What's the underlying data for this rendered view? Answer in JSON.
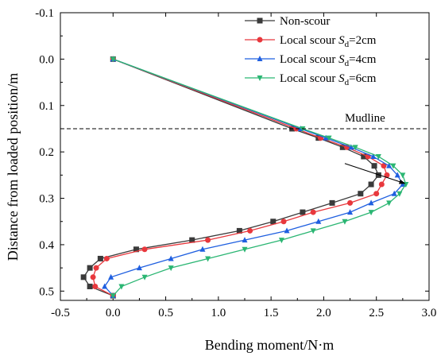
{
  "chart_data": {
    "type": "line",
    "xlabel": "Bending moment/N·m",
    "ylabel": "Distance from loaded position/m",
    "xlim": [
      -0.5,
      3.0
    ],
    "ylim": [
      -0.1,
      0.52
    ],
    "y_inverted": true,
    "grid": false,
    "legend_position": "top-right",
    "x_ticks": [
      "-0.5",
      "0.0",
      "0.5",
      "1.0",
      "1.5",
      "2.0",
      "2.5",
      "3.0"
    ],
    "y_ticks": [
      "-0.1",
      "0.0",
      "0.1",
      "0.2",
      "0.3",
      "0.4",
      "0.5"
    ],
    "annotations": [
      {
        "text": "Mudline",
        "type": "horizontal-dashed-line",
        "y": 0.15
      }
    ],
    "series": [
      {
        "name": "Non-scour",
        "legend_prefix": "Non-scour",
        "legend_subscript": "",
        "legend_suffix": "",
        "color": "#3a3a3a",
        "marker": "square",
        "points": [
          [
            0.0,
            0.0
          ],
          [
            1.7,
            0.15
          ],
          [
            1.95,
            0.17
          ],
          [
            2.18,
            0.19
          ],
          [
            2.38,
            0.21
          ],
          [
            2.48,
            0.23
          ],
          [
            2.52,
            0.25
          ],
          [
            2.45,
            0.27
          ],
          [
            2.35,
            0.29
          ],
          [
            2.08,
            0.31
          ],
          [
            1.8,
            0.33
          ],
          [
            1.52,
            0.35
          ],
          [
            1.2,
            0.37
          ],
          [
            0.75,
            0.39
          ],
          [
            0.22,
            0.41
          ],
          [
            -0.12,
            0.43
          ],
          [
            -0.22,
            0.45
          ],
          [
            -0.28,
            0.47
          ],
          [
            -0.22,
            0.49
          ],
          [
            0.0,
            0.51
          ]
        ]
      },
      {
        "name": "Local scour Sd=2cm",
        "legend_prefix": "Local scour ",
        "legend_subscript": "d",
        "legend_suffix": "=2cm",
        "color": "#e8383d",
        "marker": "circle",
        "points": [
          [
            0.0,
            0.0
          ],
          [
            1.74,
            0.15
          ],
          [
            1.97,
            0.17
          ],
          [
            2.22,
            0.19
          ],
          [
            2.42,
            0.21
          ],
          [
            2.57,
            0.23
          ],
          [
            2.6,
            0.25
          ],
          [
            2.55,
            0.27
          ],
          [
            2.5,
            0.29
          ],
          [
            2.25,
            0.31
          ],
          [
            1.9,
            0.33
          ],
          [
            1.62,
            0.35
          ],
          [
            1.3,
            0.37
          ],
          [
            0.9,
            0.39
          ],
          [
            0.3,
            0.41
          ],
          [
            -0.06,
            0.43
          ],
          [
            -0.16,
            0.45
          ],
          [
            -0.19,
            0.47
          ],
          [
            -0.17,
            0.49
          ],
          [
            0.0,
            0.51
          ]
        ]
      },
      {
        "name": "Local scour Sd=4cm",
        "legend_prefix": "Local scour ",
        "legend_subscript": "d",
        "legend_suffix": "=4cm",
        "color": "#1f5fe0",
        "marker": "triangle-up",
        "points": [
          [
            0.0,
            0.0
          ],
          [
            1.78,
            0.15
          ],
          [
            2.02,
            0.17
          ],
          [
            2.26,
            0.19
          ],
          [
            2.47,
            0.21
          ],
          [
            2.62,
            0.23
          ],
          [
            2.7,
            0.25
          ],
          [
            2.75,
            0.27
          ],
          [
            2.67,
            0.29
          ],
          [
            2.45,
            0.31
          ],
          [
            2.25,
            0.33
          ],
          [
            1.95,
            0.35
          ],
          [
            1.65,
            0.37
          ],
          [
            1.25,
            0.39
          ],
          [
            0.85,
            0.41
          ],
          [
            0.55,
            0.43
          ],
          [
            0.25,
            0.45
          ],
          [
            -0.02,
            0.47
          ],
          [
            -0.08,
            0.49
          ],
          [
            0.0,
            0.51
          ]
        ]
      },
      {
        "name": "Local scour Sd=6cm",
        "legend_prefix": "Local scour ",
        "legend_subscript": "d",
        "legend_suffix": "=6cm",
        "color": "#2bb673",
        "marker": "triangle-down",
        "points": [
          [
            0.0,
            0.0
          ],
          [
            1.8,
            0.15
          ],
          [
            2.05,
            0.17
          ],
          [
            2.3,
            0.19
          ],
          [
            2.52,
            0.21
          ],
          [
            2.66,
            0.23
          ],
          [
            2.75,
            0.25
          ],
          [
            2.78,
            0.27
          ],
          [
            2.72,
            0.29
          ],
          [
            2.62,
            0.31
          ],
          [
            2.45,
            0.33
          ],
          [
            2.2,
            0.35
          ],
          [
            1.9,
            0.37
          ],
          [
            1.6,
            0.39
          ],
          [
            1.25,
            0.41
          ],
          [
            0.9,
            0.43
          ],
          [
            0.55,
            0.45
          ],
          [
            0.3,
            0.47
          ],
          [
            0.08,
            0.49
          ],
          [
            0.0,
            0.51
          ]
        ]
      }
    ]
  }
}
